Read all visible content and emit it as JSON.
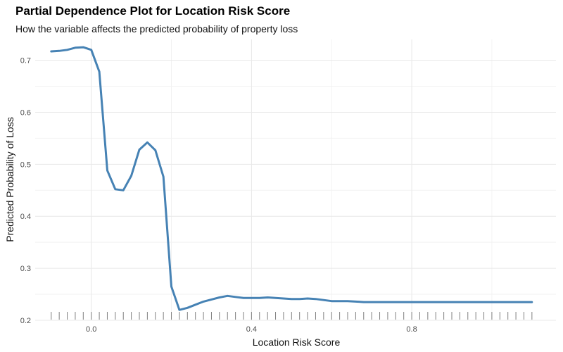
{
  "chart_data": {
    "type": "line",
    "title": "Partial Dependence Plot for Location Risk Score",
    "subtitle": "How the variable affects the predicted probability of property loss",
    "xlabel": "Location Risk Score",
    "ylabel": "Predicted Probability of Loss",
    "xlim": [
      -0.14,
      1.16
    ],
    "ylim": [
      0.2,
      0.74
    ],
    "x_ticks": [
      0.0,
      0.4,
      0.8
    ],
    "x_tick_labels": [
      "0.0",
      "0.4",
      "0.8"
    ],
    "y_ticks": [
      0.2,
      0.3,
      0.4,
      0.5,
      0.6,
      0.7
    ],
    "y_tick_labels": [
      "0.2",
      "0.3",
      "0.4",
      "0.5",
      "0.6",
      "0.7"
    ],
    "grid": true,
    "line_color": "#4682b4",
    "rug_color": "#7f7f7f",
    "series": [
      {
        "x": [
          -0.1,
          -0.08,
          -0.06,
          -0.04,
          -0.02,
          0.0,
          0.02,
          0.04,
          0.06,
          0.08,
          0.1,
          0.12,
          0.14,
          0.16,
          0.18,
          0.2,
          0.22,
          0.24,
          0.26,
          0.28,
          0.3,
          0.32,
          0.34,
          0.36,
          0.38,
          0.4,
          0.42,
          0.44,
          0.46,
          0.48,
          0.5,
          0.52,
          0.54,
          0.56,
          0.58,
          0.6,
          0.62,
          0.64,
          0.66,
          0.68,
          0.7,
          0.72,
          0.74,
          0.76,
          0.78,
          0.8,
          0.85,
          0.9,
          0.95,
          1.0,
          1.05,
          1.1
        ],
        "values": [
          0.717,
          0.718,
          0.72,
          0.724,
          0.725,
          0.72,
          0.678,
          0.488,
          0.452,
          0.45,
          0.478,
          0.528,
          0.542,
          0.527,
          0.476,
          0.265,
          0.22,
          0.224,
          0.23,
          0.236,
          0.24,
          0.244,
          0.247,
          0.245,
          0.243,
          0.243,
          0.243,
          0.244,
          0.243,
          0.242,
          0.241,
          0.241,
          0.242,
          0.241,
          0.239,
          0.237,
          0.237,
          0.237,
          0.236,
          0.235,
          0.235,
          0.235,
          0.235,
          0.235,
          0.235,
          0.235,
          0.235,
          0.235,
          0.235,
          0.235,
          0.235,
          0.235
        ]
      }
    ],
    "rug_x": [
      -0.1,
      -0.08,
      -0.06,
      -0.04,
      -0.02,
      0.0,
      0.02,
      0.04,
      0.06,
      0.08,
      0.1,
      0.12,
      0.14,
      0.16,
      0.18,
      0.2,
      0.22,
      0.24,
      0.26,
      0.28,
      0.3,
      0.32,
      0.34,
      0.36,
      0.38,
      0.4,
      0.42,
      0.44,
      0.46,
      0.48,
      0.5,
      0.52,
      0.54,
      0.56,
      0.58,
      0.6,
      0.62,
      0.64,
      0.66,
      0.68,
      0.7,
      0.72,
      0.74,
      0.76,
      0.78,
      0.8,
      0.82,
      0.84,
      0.86,
      0.88,
      0.9,
      0.92,
      0.94,
      0.96,
      0.98,
      1.0,
      1.02,
      1.04,
      1.06,
      1.08,
      1.1
    ]
  }
}
